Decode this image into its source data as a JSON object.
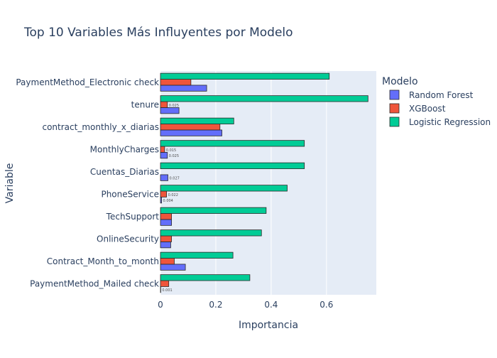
{
  "chart_data": {
    "type": "bar",
    "orientation": "horizontal",
    "title": "Top 10 Variables Más Influyentes por Modelo",
    "xlabel": "Importancia",
    "ylabel": "Variable",
    "xlim": [
      0,
      0.78
    ],
    "xticks": [
      0,
      0.2,
      0.4,
      0.6
    ],
    "xtick_labels": [
      "0",
      "0.2",
      "0.4",
      "0.6"
    ],
    "grid": true,
    "legend_title": "Modelo",
    "legend_position": "right",
    "categories": [
      "PaymentMethod_Electronic check",
      "tenure",
      "contract_monthly_x_diarias",
      "MonthlyCharges",
      "Cuentas_Diarias",
      "PhoneService",
      "TechSupport",
      "OnlineSecurity",
      "Contract_Month_to_month",
      "PaymentMethod_Mailed check"
    ],
    "series": [
      {
        "name": "Random Forest",
        "color": "#636efa",
        "values": [
          0.167,
          0.067,
          0.222,
          0.025,
          0.027,
          0.004,
          0.04,
          0.037,
          0.09,
          0.001
        ],
        "data_labels": [
          "",
          "",
          "",
          "0.025",
          "0.027",
          "0.004",
          "",
          "",
          "",
          "0.001"
        ]
      },
      {
        "name": "XGBoost",
        "color": "#ef553b",
        "values": [
          0.11,
          0.025,
          0.215,
          0.015,
          0.0,
          0.022,
          0.04,
          0.04,
          0.05,
          0.03
        ],
        "data_labels": [
          "",
          "0.025",
          "",
          "0.015",
          "",
          "0.022",
          "",
          "",
          "",
          ""
        ]
      },
      {
        "name": "Logistic Regression",
        "color": "#00cc96",
        "values": [
          0.61,
          0.75,
          0.265,
          0.52,
          0.52,
          0.458,
          0.382,
          0.365,
          0.262,
          0.323
        ],
        "data_labels": [
          "",
          "",
          "",
          "",
          "",
          "",
          "",
          "",
          "",
          ""
        ]
      }
    ]
  }
}
